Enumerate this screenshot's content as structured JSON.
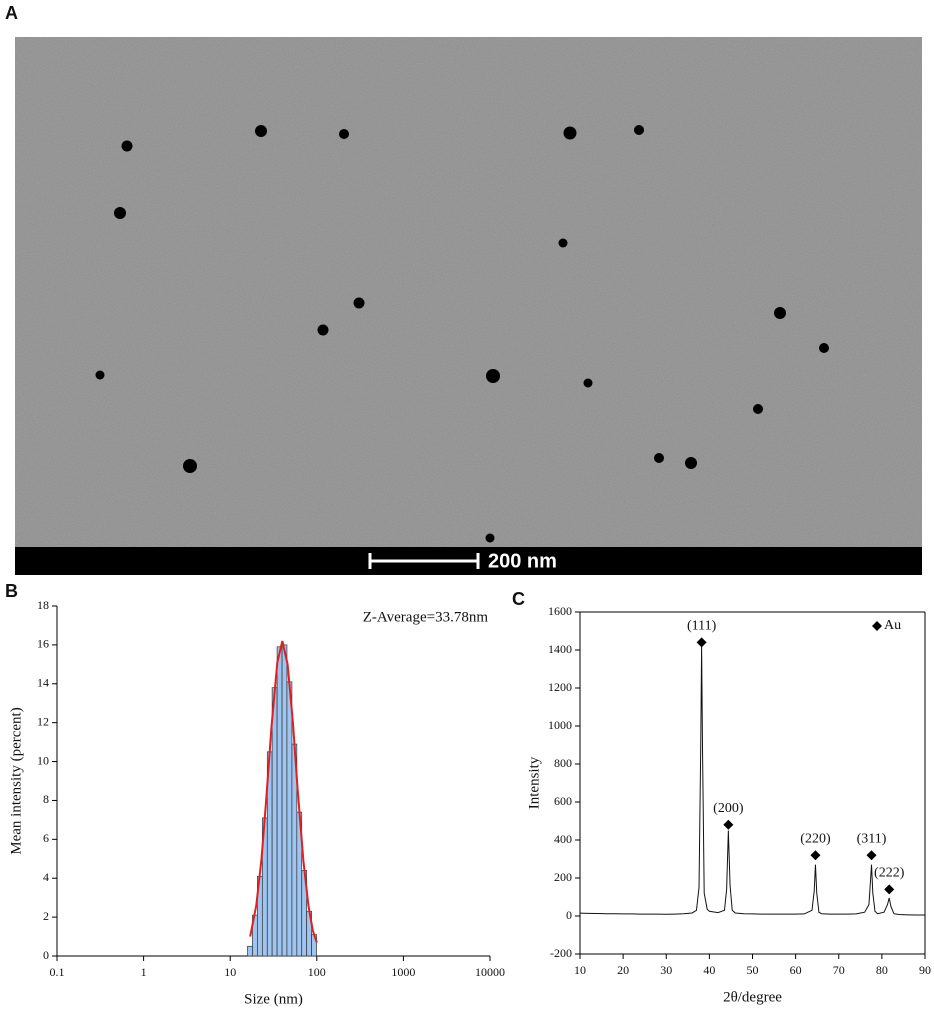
{
  "panel_labels": [
    "A",
    "B",
    "C"
  ],
  "image": {
    "scale_bar": "200 nm"
  },
  "chart_data": [
    {
      "type": "histogram",
      "xlabel": "Size (nm)",
      "ylabel": "Mean intensity (percent)",
      "annotation": "Z-Average=33.78nm",
      "xscale": "log",
      "xlim": [
        0.1,
        10000
      ],
      "xticks": [
        0.1,
        1,
        10,
        100,
        1000,
        10000
      ],
      "ylim": [
        0,
        18
      ],
      "yticks": [
        0,
        2,
        4,
        6,
        8,
        10,
        12,
        14,
        16,
        18
      ],
      "bins": [
        15.85,
        18.07,
        20.6,
        23.5,
        26.8,
        30.5,
        34.8,
        39.7,
        45.2,
        51.6,
        58.8,
        67.0,
        76.4,
        87.1,
        99.3
      ],
      "counts": [
        0.5,
        2.1,
        4.1,
        7.1,
        10.5,
        13.8,
        15.9,
        16.0,
        14.1,
        10.9,
        7.4,
        4.4,
        2.3,
        1.1
      ],
      "color": "#9ec5f0",
      "fit": {
        "color": "#e02020",
        "x": [
          17,
          20,
          23,
          26,
          30,
          35,
          40,
          46,
          53,
          60,
          70,
          80,
          90,
          100
        ],
        "values": [
          1.0,
          2.6,
          5.0,
          8.0,
          11.8,
          15.1,
          16.2,
          15.0,
          12.0,
          8.6,
          4.9,
          2.6,
          1.3,
          0.7
        ]
      }
    },
    {
      "type": "line",
      "xlabel": "2θ/degree",
      "ylabel": "Intensity",
      "legend": "Au",
      "legend_position": "top-right",
      "color": "#111111",
      "xlim": [
        10,
        90
      ],
      "xticks": [
        10,
        20,
        30,
        40,
        50,
        60,
        70,
        80,
        90
      ],
      "ylim": [
        -200,
        1600
      ],
      "yticks": [
        -200,
        0,
        200,
        400,
        600,
        800,
        1000,
        1200,
        1400,
        1600
      ],
      "x": [
        10,
        12,
        14,
        16,
        18,
        20,
        22,
        24,
        26,
        28,
        30,
        32,
        34,
        36,
        37,
        37.6,
        38.0,
        38.2,
        38.4,
        38.8,
        39.5,
        40,
        42,
        43.5,
        44.0,
        44.4,
        44.8,
        45.3,
        46,
        48,
        50,
        52,
        54,
        56,
        58,
        60,
        62,
        63.8,
        64.3,
        64.6,
        64.9,
        65.4,
        66,
        68,
        70,
        72,
        74,
        76,
        77,
        77.4,
        77.6,
        77.9,
        78.4,
        79,
        80.5,
        81.3,
        81.7,
        82.1,
        82.8,
        84,
        86,
        88,
        90
      ],
      "values": [
        15,
        14,
        13,
        12,
        12,
        11,
        11,
        10,
        10,
        10,
        9,
        10,
        12,
        16,
        30,
        150,
        900,
        1420,
        900,
        120,
        35,
        25,
        18,
        30,
        140,
        450,
        160,
        30,
        16,
        12,
        11,
        10,
        10,
        10,
        10,
        10,
        11,
        30,
        130,
        270,
        120,
        20,
        12,
        10,
        10,
        10,
        11,
        20,
        60,
        200,
        270,
        120,
        25,
        12,
        20,
        60,
        95,
        50,
        12,
        8,
        6,
        5,
        5
      ],
      "annotations": [
        {
          "text": "(111)",
          "x": 38.2,
          "y": 1440
        },
        {
          "text": "(200)",
          "x": 44.4,
          "y": 480
        },
        {
          "text": "(220)",
          "x": 64.6,
          "y": 320
        },
        {
          "text": "(311)",
          "x": 77.6,
          "y": 320
        },
        {
          "text": "(222)",
          "x": 81.7,
          "y": 140
        }
      ]
    }
  ]
}
